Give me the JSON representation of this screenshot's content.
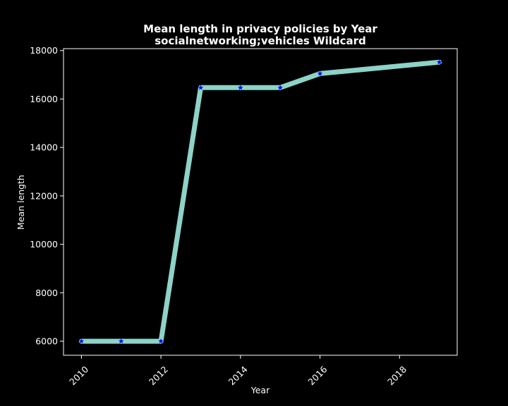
{
  "chart_data": {
    "type": "line",
    "title": "Mean length in privacy policies by Year",
    "subtitle": "socialnetworking;vehicles Wildcard",
    "xlabel": "Year",
    "ylabel": "Mean length",
    "x": [
      2010,
      2011,
      2012,
      2013,
      2014,
      2015,
      2016,
      2019
    ],
    "series": [
      {
        "values": [
          6000,
          6000,
          6000,
          16470,
          16470,
          16470,
          17050,
          17520
        ]
      }
    ],
    "xlim": [
      2009.55,
      2019.45
    ],
    "ylim": [
      5420,
      18080
    ],
    "x_ticks": [
      "2010",
      "2012",
      "2014",
      "2016",
      "2018"
    ],
    "y_ticks": [
      "6000",
      "8000",
      "10000",
      "12000",
      "14000",
      "16000",
      "18000"
    ],
    "grid": false,
    "colors": {
      "background": "#000000",
      "line": "#8dd3c7",
      "marker": "#0000ff",
      "text": "#ffffff",
      "axes": "#ffffff"
    }
  }
}
